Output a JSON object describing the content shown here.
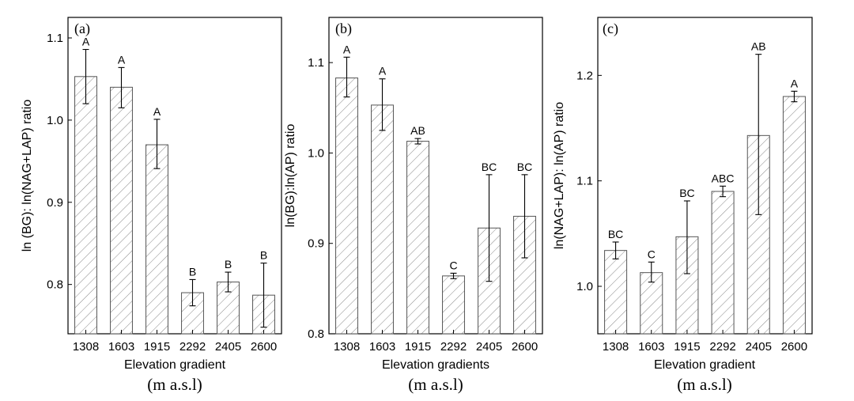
{
  "chart_data": [
    {
      "type": "bar",
      "panel_label": "(a)",
      "categories": [
        "1308",
        "1603",
        "1915",
        "2292",
        "2405",
        "2600"
      ],
      "values": [
        1.053,
        1.04,
        0.97,
        0.79,
        0.803,
        0.787
      ],
      "errors_upper": [
        1.086,
        1.064,
        1.001,
        0.806,
        0.815,
        0.826
      ],
      "errors_lower": [
        1.02,
        1.015,
        0.941,
        0.774,
        0.791,
        0.748
      ],
      "significance": [
        "A",
        "A",
        "A",
        "B",
        "B",
        "B"
      ],
      "ylabel": "ln (BG): ln(NAG+LAP) ratio",
      "xlabel": "Elevation gradient",
      "unit_label": "(m a.s.l)",
      "ylim": [
        0.74,
        1.125
      ],
      "yticks": [
        0.8,
        0.9,
        1.0,
        1.1
      ],
      "ytick_labels": [
        "0.8",
        "0.9",
        "1.0",
        "1.1"
      ]
    },
    {
      "type": "bar",
      "panel_label": "(b)",
      "categories": [
        "1308",
        "1603",
        "1915",
        "2292",
        "2405",
        "2600"
      ],
      "values": [
        1.083,
        1.053,
        1.013,
        0.864,
        0.917,
        0.93
      ],
      "errors_upper": [
        1.106,
        1.082,
        1.016,
        0.867,
        0.976,
        0.976
      ],
      "errors_lower": [
        1.062,
        1.025,
        1.01,
        0.861,
        0.858,
        0.884
      ],
      "significance": [
        "A",
        "A",
        "AB",
        "C",
        "BC",
        "BC"
      ],
      "ylabel": "ln(BG):ln(AP) ratio",
      "xlabel": "Elevation gradients",
      "unit_label": "(m a.s.l)",
      "ylim": [
        0.8,
        1.15
      ],
      "yticks": [
        0.8,
        0.9,
        1.0,
        1.1
      ],
      "ytick_labels": [
        "0.8",
        "0.9",
        "1.0",
        "1.1"
      ]
    },
    {
      "type": "bar",
      "panel_label": "(c)",
      "categories": [
        "1308",
        "1603",
        "1915",
        "2292",
        "2405",
        "2600"
      ],
      "values": [
        1.034,
        1.013,
        1.047,
        1.09,
        1.143,
        1.18
      ],
      "errors_upper": [
        1.042,
        1.023,
        1.081,
        1.095,
        1.22,
        1.185
      ],
      "errors_lower": [
        1.026,
        1.004,
        1.012,
        1.085,
        1.068,
        1.175
      ],
      "significance": [
        "BC",
        "C",
        "BC",
        "ABC",
        "AB",
        "A"
      ],
      "ylabel": "ln(NAG+LAP): ln(AP) ratio",
      "xlabel": "Elevation gradient",
      "unit_label": "(m a.s.l)",
      "ylim": [
        0.955,
        1.255
      ],
      "yticks": [
        1.0,
        1.1,
        1.2
      ],
      "ytick_labels": [
        "1.0",
        "1.1",
        "1.2"
      ]
    }
  ]
}
